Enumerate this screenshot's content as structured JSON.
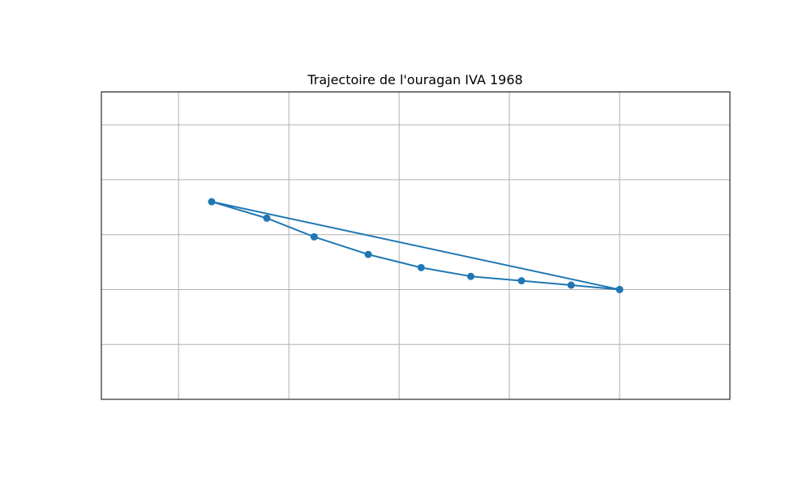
{
  "chart_data": {
    "type": "line",
    "title": "Trajectoire de l'ouragan IVA 1968",
    "xlabel": "",
    "ylabel": "",
    "xlim": [
      -0.7,
      5.0
    ],
    "ylim": [
      -1.0,
      1.8
    ],
    "grid": true,
    "x_ticks": [
      0,
      1,
      2,
      3,
      4
    ],
    "y_ticks": [
      -0.5,
      0,
      0.5,
      1.0,
      1.5
    ],
    "marker": "circle",
    "color": "#1f77b4",
    "series": [
      {
        "points": [
          {
            "x": 4.0,
            "y": 0.0
          },
          {
            "x": 0.3,
            "y": 0.8
          },
          {
            "x": 0.8,
            "y": 0.65
          },
          {
            "x": 1.23,
            "y": 0.48
          },
          {
            "x": 1.72,
            "y": 0.32
          },
          {
            "x": 2.2,
            "y": 0.2
          },
          {
            "x": 2.65,
            "y": 0.12
          },
          {
            "x": 3.11,
            "y": 0.08
          },
          {
            "x": 3.56,
            "y": 0.04
          },
          {
            "x": 4.0,
            "y": 0.0
          }
        ]
      }
    ]
  }
}
